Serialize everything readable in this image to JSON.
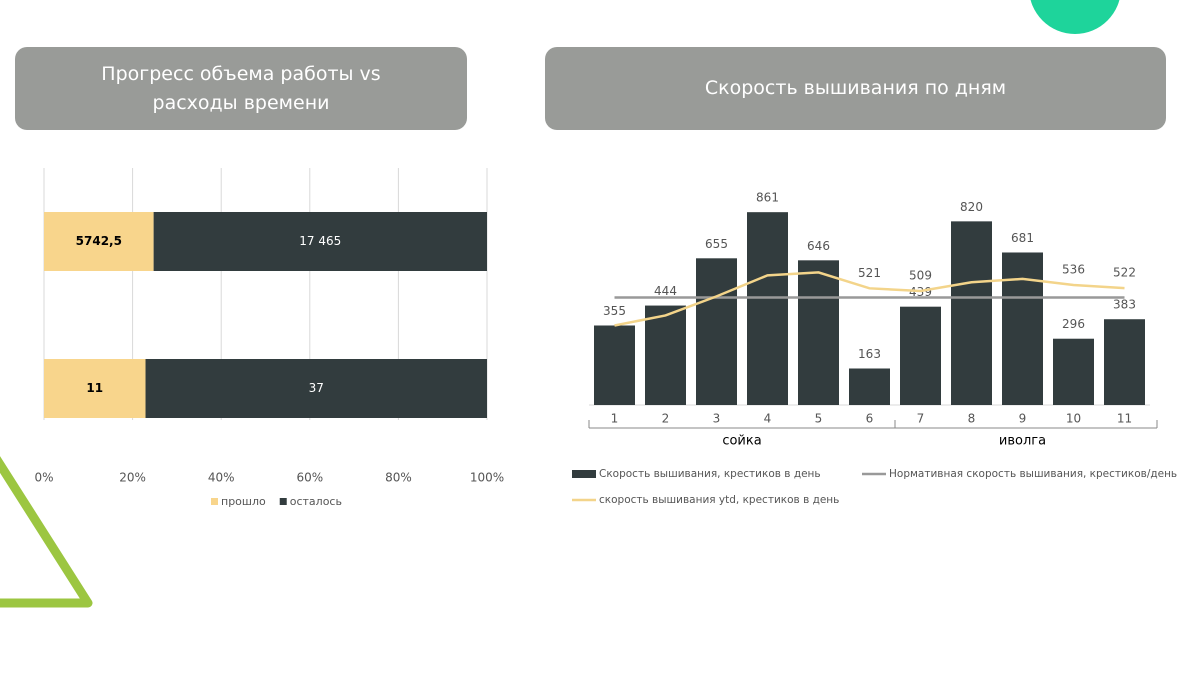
{
  "chart_data": [
    {
      "type": "bar",
      "orientation": "horizontal",
      "stack": "percent",
      "title": "Прогресс объема работы vs расходы времени",
      "categories": [
        null,
        null
      ],
      "series": [
        {
          "name": "прошло",
          "color": "#f8d58c",
          "label_color": "#000000",
          "values": [
            5742.5,
            11
          ],
          "value_labels": [
            "5742,5",
            "11"
          ]
        },
        {
          "name": "осталось",
          "color": "#323c3e",
          "label_color": "#ffffff",
          "values": [
            17465,
            37
          ],
          "value_labels": [
            "17 465",
            "37"
          ]
        }
      ],
      "xlim": [
        0,
        100
      ],
      "xticks": [
        {
          "value": 0,
          "label": "0%"
        },
        {
          "value": 20,
          "label": "20%"
        },
        {
          "value": 40,
          "label": "40%"
        },
        {
          "value": 60,
          "label": "60%"
        },
        {
          "value": 80,
          "label": "80%"
        },
        {
          "value": 100,
          "label": "100%"
        }
      ],
      "grid": true,
      "legend": "bottom"
    },
    {
      "type": "combo",
      "title": "Скорость вышивания по дням",
      "categories": [
        "1",
        "2",
        "3",
        "4",
        "5",
        "6",
        "7",
        "8",
        "9",
        "10",
        "11"
      ],
      "category_groups": [
        {
          "name": "сойка",
          "size": 6
        },
        {
          "name": "иволга",
          "size": 5
        }
      ],
      "ylim": [
        0,
        960
      ],
      "series": [
        {
          "name": "Скорость вышивания, крестиков в день",
          "type": "bar",
          "color": "#323c3e",
          "values": [
            355,
            444,
            655,
            861,
            646,
            163,
            439,
            820,
            681,
            296,
            383
          ]
        },
        {
          "name": "Нормативная скорость вышивания, крестиков/день",
          "type": "line",
          "color": "#999999",
          "values": [
            480,
            480,
            480,
            480,
            480,
            480,
            480,
            480,
            480,
            480,
            480
          ]
        },
        {
          "name": "скорость вышивания ytd, крестиков в день",
          "type": "line",
          "color": "#f3d48a",
          "values": [
            355,
            400,
            485,
            579,
            592,
            521,
            509,
            548,
            563,
            536,
            522
          ],
          "value_labels": [
            null,
            null,
            null,
            null,
            null,
            "521",
            "509",
            null,
            null,
            "536",
            "522"
          ]
        }
      ],
      "legend": "bottom"
    }
  ]
}
